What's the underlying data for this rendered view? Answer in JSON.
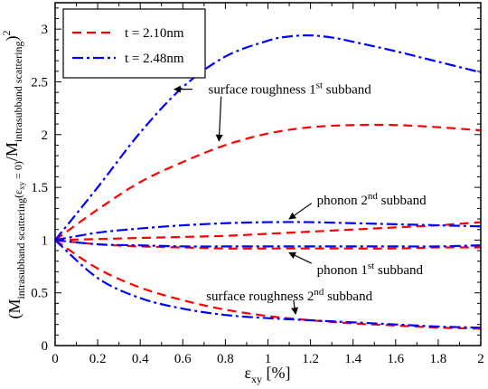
{
  "chart_data": {
    "type": "line",
    "xlabel": "ε_xy [%]",
    "ylabel": "(M_intrasubband scattering(ε_xy = 0)/M_intrasubband scattering)^2",
    "xlim": [
      0,
      2
    ],
    "ylim": [
      0,
      3.25
    ],
    "xticks": [
      "0",
      "0.2",
      "0.4",
      "0.6",
      "0.8",
      "1",
      "1.2",
      "1.4",
      "1.6",
      "1.8",
      "2"
    ],
    "yticks": [
      "0",
      "0.5",
      "1",
      "1.5",
      "2",
      "2.5",
      "3"
    ],
    "grid": false,
    "legend_position": "top-left",
    "legend": [
      {
        "label": "t = 2.10nm",
        "color": "#ff0000",
        "style": "dashed"
      },
      {
        "label": "t = 2.48nm",
        "color": "#0000ff",
        "style": "dashdot"
      }
    ],
    "series": [
      {
        "name": "t = 2.10nm",
        "group": "surface roughness 1st subband",
        "color": "#ff0000",
        "style": "dashed",
        "x": [
          0,
          0.2,
          0.4,
          0.6,
          0.8,
          1.0,
          1.2,
          1.4,
          1.6,
          1.8,
          2.0
        ],
        "y": [
          1.0,
          1.29,
          1.55,
          1.74,
          1.9,
          2.01,
          2.07,
          2.09,
          2.09,
          2.07,
          2.04
        ]
      },
      {
        "name": "t = 2.48nm",
        "group": "surface roughness 1st subband",
        "color": "#0000ff",
        "style": "dashdot",
        "x": [
          0,
          0.2,
          0.4,
          0.6,
          0.8,
          1.0,
          1.1,
          1.2,
          1.3,
          1.4,
          1.6,
          1.8,
          2.0
        ],
        "y": [
          1.0,
          1.5,
          2.02,
          2.45,
          2.74,
          2.89,
          2.93,
          2.94,
          2.92,
          2.88,
          2.79,
          2.69,
          2.59
        ]
      },
      {
        "name": "t = 2.10nm",
        "group": "phonon 2nd subband",
        "color": "#ff0000",
        "style": "dashed",
        "x": [
          0,
          0.2,
          0.4,
          0.6,
          0.8,
          1.0,
          1.2,
          1.4,
          1.6,
          1.8,
          2.0
        ],
        "y": [
          1.0,
          1.01,
          1.02,
          1.03,
          1.04,
          1.06,
          1.08,
          1.1,
          1.12,
          1.14,
          1.17
        ]
      },
      {
        "name": "t = 2.48nm",
        "group": "phonon 2nd subband",
        "color": "#0000ff",
        "style": "dashdot",
        "x": [
          0,
          0.2,
          0.4,
          0.6,
          0.8,
          1.0,
          1.2,
          1.4,
          1.6,
          1.8,
          2.0
        ],
        "y": [
          1.0,
          1.07,
          1.11,
          1.14,
          1.16,
          1.17,
          1.17,
          1.16,
          1.15,
          1.14,
          1.13
        ]
      },
      {
        "name": "t = 2.10nm",
        "group": "phonon 1st subband",
        "color": "#ff0000",
        "style": "dashed",
        "x": [
          0,
          0.2,
          0.4,
          0.6,
          0.8,
          1.0,
          1.2,
          1.4,
          1.6,
          1.8,
          2.0
        ],
        "y": [
          1.0,
          0.96,
          0.94,
          0.93,
          0.92,
          0.92,
          0.92,
          0.92,
          0.92,
          0.93,
          0.93
        ]
      },
      {
        "name": "t = 2.48nm",
        "group": "phonon 1st subband",
        "color": "#0000ff",
        "style": "dashdot",
        "x": [
          0,
          0.2,
          0.4,
          0.6,
          0.8,
          1.0,
          1.2,
          1.4,
          1.6,
          1.8,
          2.0
        ],
        "y": [
          1.0,
          0.96,
          0.95,
          0.94,
          0.94,
          0.94,
          0.94,
          0.94,
          0.94,
          0.94,
          0.95
        ]
      },
      {
        "name": "t = 2.10nm",
        "group": "surface roughness 2nd subband",
        "color": "#ff0000",
        "style": "dashed",
        "x": [
          0,
          0.2,
          0.4,
          0.6,
          0.8,
          1.0,
          1.2,
          1.4,
          1.6,
          1.8,
          2.0
        ],
        "y": [
          1.0,
          0.73,
          0.55,
          0.43,
          0.34,
          0.28,
          0.24,
          0.21,
          0.19,
          0.17,
          0.16
        ]
      },
      {
        "name": "t = 2.48nm",
        "group": "surface roughness 2nd subband",
        "color": "#0000ff",
        "style": "dashdot",
        "x": [
          0,
          0.2,
          0.4,
          0.6,
          0.8,
          1.0,
          1.2,
          1.4,
          1.6,
          1.8,
          2.0
        ],
        "y": [
          1.0,
          0.64,
          0.45,
          0.35,
          0.29,
          0.26,
          0.24,
          0.22,
          0.2,
          0.18,
          0.17
        ]
      }
    ],
    "annotations": [
      {
        "id": "sr1",
        "base": "surface roughness 1",
        "sup": "st",
        "tail": " subband",
        "text_xy": [
          0.72,
          2.43
        ],
        "arrow_from": [
          0.645,
          2.43
        ],
        "arrow_to": [
          0.56,
          2.43
        ]
      },
      {
        "id": "sr1b",
        "base": "",
        "sup": "",
        "tail": "",
        "text_xy": [
          0.78,
          2.36
        ],
        "arrow_from": [
          0.78,
          2.36
        ],
        "arrow_to": [
          0.77,
          1.94
        ]
      },
      {
        "id": "ph2",
        "base": "phonon 2",
        "sup": "nd",
        "tail": " subband",
        "text_xy": [
          1.23,
          1.38
        ],
        "arrow_from": [
          1.205,
          1.35
        ],
        "arrow_to": [
          1.1,
          1.2
        ]
      },
      {
        "id": "ph1",
        "base": "phonon 1",
        "sup": "st",
        "tail": " subband",
        "text_xy": [
          1.23,
          0.72
        ],
        "arrow_from": [
          1.205,
          0.78
        ],
        "arrow_to": [
          1.1,
          0.88
        ]
      },
      {
        "id": "sr2",
        "base": "surface roughness 2",
        "sup": "nd",
        "tail": " subband",
        "text_xy": [
          0.71,
          0.47
        ],
        "arrow_from": [
          1.12,
          0.43
        ],
        "arrow_to": [
          1.13,
          0.3
        ]
      }
    ]
  }
}
